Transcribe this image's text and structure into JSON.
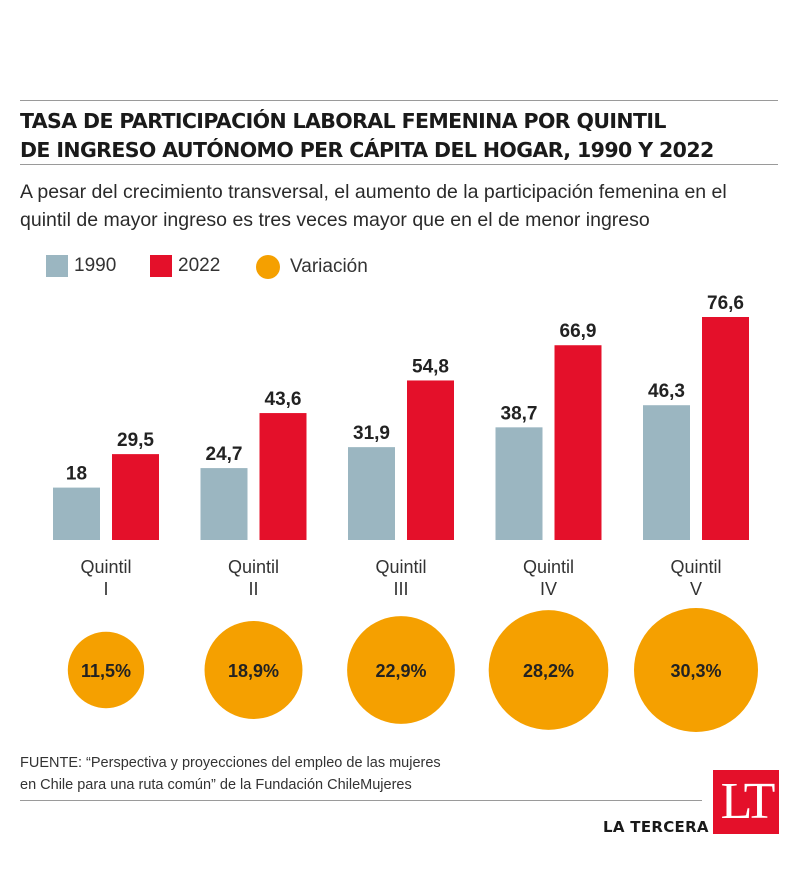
{
  "header": {
    "title_line1": "TASA DE PARTICIPACIÓN LABORAL FEMENINA POR QUINTIL",
    "title_line2": "DE INGRESO AUTÓNOMO PER CÁPITA DEL HOGAR, 1990 Y 2022",
    "subtitle_line1": "A pesar del crecimiento transversal, el aumento de la participación femenina en el",
    "subtitle_line2": "quintil de mayor ingreso es tres veces mayor que en el de menor ingreso"
  },
  "legend": {
    "item_1990": "1990",
    "item_2022": "2022",
    "item_variation": "Variación"
  },
  "colors": {
    "s1990": "#9bb6c1",
    "s2022": "#e4102a",
    "variation": "#f5a000",
    "rule": "#9a9a9a"
  },
  "chart_data": {
    "type": "bar",
    "title": "TASA DE PARTICIPACIÓN LABORAL FEMENINA POR QUINTIL DE INGRESO AUTÓNOMO PER CÁPITA DEL HOGAR, 1990 Y 2022",
    "categories": [
      "Quintil I",
      "Quintil II",
      "Quintil III",
      "Quintil IV",
      "Quintil V"
    ],
    "category_lines": [
      [
        "Quintil",
        "I"
      ],
      [
        "Quintil",
        "II"
      ],
      [
        "Quintil",
        "III"
      ],
      [
        "Quintil",
        "IV"
      ],
      [
        "Quintil",
        "V"
      ]
    ],
    "series": [
      {
        "name": "1990",
        "values": [
          18,
          24.7,
          31.9,
          38.7,
          46.3
        ],
        "labels": [
          "18",
          "24,7",
          "31,9",
          "38,7",
          "46,3"
        ]
      },
      {
        "name": "2022",
        "values": [
          29.5,
          43.6,
          54.8,
          66.9,
          76.6
        ],
        "labels": [
          "29,5",
          "43,6",
          "54,8",
          "66,9",
          "76,6"
        ]
      }
    ],
    "variation": {
      "name": "Variación",
      "values": [
        11.5,
        18.9,
        22.9,
        28.2,
        30.3
      ],
      "labels": [
        "11,5%",
        "18,9%",
        "22,9%",
        "28,2%",
        "30,3%"
      ]
    },
    "ylim": [
      0,
      80
    ],
    "grid": false,
    "legend_position": "top-left",
    "xlabel": "",
    "ylabel": ""
  },
  "source": {
    "line1": "FUENTE: “Perspectiva y proyecciones del empleo de las mujeres",
    "line2": "en Chile para una ruta común” de la Fundación ChileMujeres"
  },
  "branding": {
    "name": "LA TERCERA",
    "logo_text": "LT"
  }
}
